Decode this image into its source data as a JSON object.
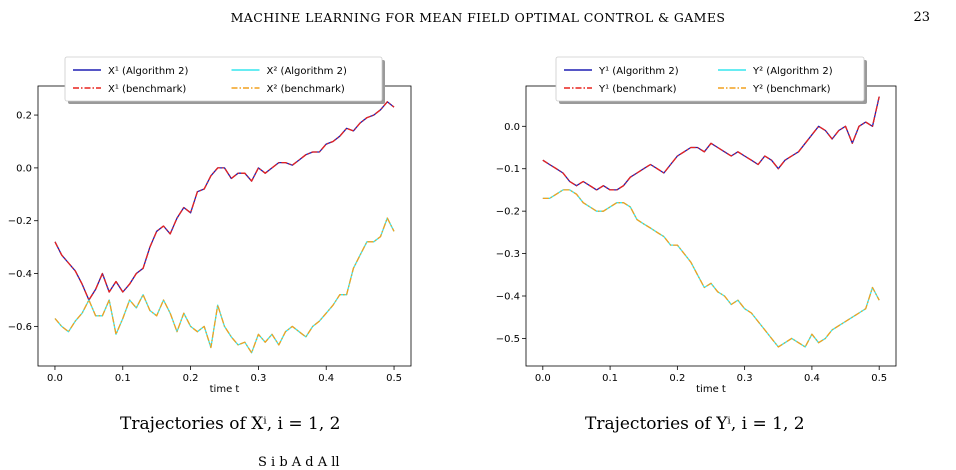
{
  "header": {
    "running_title": "MACHINE LEARNING FOR MEAN FIELD OPTIMAL CONTROL & GAMES",
    "page_number": "23"
  },
  "captions": {
    "left": "Trajectories of Xⁱ, i = 1, 2",
    "right": "Trajectories of Yⁱ, i = 1, 2"
  },
  "bottom_fragment": "S          i                                  b        A        d   A   ll",
  "chart_data": [
    {
      "type": "line",
      "xlabel": "time t",
      "ylabel": "",
      "xlim": [
        -0.025,
        0.525
      ],
      "ylim": [
        -0.75,
        0.31
      ],
      "xticks": [
        0.0,
        0.1,
        0.2,
        0.3,
        0.4,
        0.5
      ],
      "yticks": [
        -0.6,
        -0.4,
        -0.2,
        0.0,
        0.2
      ],
      "legend": [
        "X¹ (Algorithm 2)",
        "X² (Algorithm 2)",
        "X¹ (benchmark)",
        "X² (benchmark)"
      ],
      "legend_position": "top",
      "series": [
        {
          "name": "X¹ (Algorithm 2)",
          "color": "#1f1fb4",
          "style": "solid",
          "x": [
            0.0,
            0.01,
            0.02,
            0.03,
            0.04,
            0.05,
            0.06,
            0.07,
            0.08,
            0.09,
            0.1,
            0.11,
            0.12,
            0.13,
            0.14,
            0.15,
            0.16,
            0.17,
            0.18,
            0.19,
            0.2,
            0.21,
            0.22,
            0.23,
            0.24,
            0.25,
            0.26,
            0.27,
            0.28,
            0.29,
            0.3,
            0.31,
            0.32,
            0.33,
            0.34,
            0.35,
            0.36,
            0.37,
            0.38,
            0.39,
            0.4,
            0.41,
            0.42,
            0.43,
            0.44,
            0.45,
            0.46,
            0.47,
            0.48,
            0.49,
            0.5
          ],
          "y": [
            -0.28,
            -0.33,
            -0.36,
            -0.39,
            -0.44,
            -0.5,
            -0.46,
            -0.4,
            -0.47,
            -0.43,
            -0.47,
            -0.44,
            -0.4,
            -0.38,
            -0.3,
            -0.24,
            -0.22,
            -0.25,
            -0.19,
            -0.15,
            -0.17,
            -0.09,
            -0.08,
            -0.03,
            0.0,
            0.0,
            -0.04,
            -0.02,
            -0.02,
            -0.05,
            0.0,
            -0.02,
            0.0,
            0.02,
            0.02,
            0.01,
            0.03,
            0.05,
            0.06,
            0.06,
            0.09,
            0.1,
            0.12,
            0.15,
            0.14,
            0.17,
            0.19,
            0.2,
            0.22,
            0.25,
            0.23
          ]
        },
        {
          "name": "X¹ (benchmark)",
          "color": "#e8231e",
          "style": "dashdot",
          "x": [
            0.0,
            0.01,
            0.02,
            0.03,
            0.04,
            0.05,
            0.06,
            0.07,
            0.08,
            0.09,
            0.1,
            0.11,
            0.12,
            0.13,
            0.14,
            0.15,
            0.16,
            0.17,
            0.18,
            0.19,
            0.2,
            0.21,
            0.22,
            0.23,
            0.24,
            0.25,
            0.26,
            0.27,
            0.28,
            0.29,
            0.3,
            0.31,
            0.32,
            0.33,
            0.34,
            0.35,
            0.36,
            0.37,
            0.38,
            0.39,
            0.4,
            0.41,
            0.42,
            0.43,
            0.44,
            0.45,
            0.46,
            0.47,
            0.48,
            0.49,
            0.5
          ],
          "y": [
            -0.28,
            -0.33,
            -0.36,
            -0.39,
            -0.44,
            -0.5,
            -0.46,
            -0.4,
            -0.47,
            -0.43,
            -0.47,
            -0.44,
            -0.4,
            -0.38,
            -0.3,
            -0.24,
            -0.22,
            -0.25,
            -0.19,
            -0.15,
            -0.17,
            -0.09,
            -0.08,
            -0.03,
            0.0,
            0.0,
            -0.04,
            -0.02,
            -0.02,
            -0.05,
            0.0,
            -0.02,
            0.0,
            0.02,
            0.02,
            0.01,
            0.03,
            0.05,
            0.06,
            0.06,
            0.09,
            0.1,
            0.12,
            0.15,
            0.14,
            0.17,
            0.19,
            0.2,
            0.22,
            0.25,
            0.23
          ]
        },
        {
          "name": "X² (Algorithm 2)",
          "color": "#35e6ee",
          "style": "solid",
          "x": [
            0.0,
            0.01,
            0.02,
            0.03,
            0.04,
            0.05,
            0.06,
            0.07,
            0.08,
            0.09,
            0.1,
            0.11,
            0.12,
            0.13,
            0.14,
            0.15,
            0.16,
            0.17,
            0.18,
            0.19,
            0.2,
            0.21,
            0.22,
            0.23,
            0.24,
            0.25,
            0.26,
            0.27,
            0.28,
            0.29,
            0.3,
            0.31,
            0.32,
            0.33,
            0.34,
            0.35,
            0.36,
            0.37,
            0.38,
            0.39,
            0.4,
            0.41,
            0.42,
            0.43,
            0.44,
            0.45,
            0.46,
            0.47,
            0.48,
            0.49,
            0.5
          ],
          "y": [
            -0.57,
            -0.6,
            -0.62,
            -0.58,
            -0.55,
            -0.5,
            -0.56,
            -0.56,
            -0.5,
            -0.63,
            -0.57,
            -0.5,
            -0.53,
            -0.48,
            -0.54,
            -0.56,
            -0.5,
            -0.55,
            -0.62,
            -0.55,
            -0.6,
            -0.62,
            -0.6,
            -0.68,
            -0.52,
            -0.6,
            -0.64,
            -0.67,
            -0.66,
            -0.7,
            -0.63,
            -0.66,
            -0.63,
            -0.67,
            -0.62,
            -0.6,
            -0.62,
            -0.64,
            -0.6,
            -0.58,
            -0.55,
            -0.52,
            -0.48,
            -0.48,
            -0.38,
            -0.33,
            -0.28,
            -0.28,
            -0.26,
            -0.19,
            -0.24
          ]
        },
        {
          "name": "X² (benchmark)",
          "color": "#f2a11f",
          "style": "dashdot",
          "x": [
            0.0,
            0.01,
            0.02,
            0.03,
            0.04,
            0.05,
            0.06,
            0.07,
            0.08,
            0.09,
            0.1,
            0.11,
            0.12,
            0.13,
            0.14,
            0.15,
            0.16,
            0.17,
            0.18,
            0.19,
            0.2,
            0.21,
            0.22,
            0.23,
            0.24,
            0.25,
            0.26,
            0.27,
            0.28,
            0.29,
            0.3,
            0.31,
            0.32,
            0.33,
            0.34,
            0.35,
            0.36,
            0.37,
            0.38,
            0.39,
            0.4,
            0.41,
            0.42,
            0.43,
            0.44,
            0.45,
            0.46,
            0.47,
            0.48,
            0.49,
            0.5
          ],
          "y": [
            -0.57,
            -0.6,
            -0.62,
            -0.58,
            -0.55,
            -0.5,
            -0.56,
            -0.56,
            -0.5,
            -0.63,
            -0.57,
            -0.5,
            -0.53,
            -0.48,
            -0.54,
            -0.56,
            -0.5,
            -0.55,
            -0.62,
            -0.55,
            -0.6,
            -0.62,
            -0.6,
            -0.68,
            -0.52,
            -0.6,
            -0.64,
            -0.67,
            -0.66,
            -0.7,
            -0.63,
            -0.66,
            -0.63,
            -0.67,
            -0.62,
            -0.6,
            -0.62,
            -0.64,
            -0.6,
            -0.58,
            -0.55,
            -0.52,
            -0.48,
            -0.48,
            -0.38,
            -0.33,
            -0.28,
            -0.28,
            -0.26,
            -0.19,
            -0.24
          ]
        }
      ]
    },
    {
      "type": "line",
      "xlabel": "time t",
      "ylabel": "",
      "xlim": [
        -0.025,
        0.525
      ],
      "ylim": [
        -0.565,
        0.095
      ],
      "xticks": [
        0.0,
        0.1,
        0.2,
        0.3,
        0.4,
        0.5
      ],
      "yticks": [
        -0.5,
        -0.4,
        -0.3,
        -0.2,
        -0.1,
        0.0
      ],
      "legend": [
        "Y¹ (Algorithm 2)",
        "Y² (Algorithm 2)",
        "Y¹ (benchmark)",
        "Y² (benchmark)"
      ],
      "legend_position": "top",
      "series": [
        {
          "name": "Y¹ (Algorithm 2)",
          "color": "#1f1fb4",
          "style": "solid",
          "x": [
            0.0,
            0.01,
            0.02,
            0.03,
            0.04,
            0.05,
            0.06,
            0.07,
            0.08,
            0.09,
            0.1,
            0.11,
            0.12,
            0.13,
            0.14,
            0.15,
            0.16,
            0.17,
            0.18,
            0.19,
            0.2,
            0.21,
            0.22,
            0.23,
            0.24,
            0.25,
            0.26,
            0.27,
            0.28,
            0.29,
            0.3,
            0.31,
            0.32,
            0.33,
            0.34,
            0.35,
            0.36,
            0.37,
            0.38,
            0.39,
            0.4,
            0.41,
            0.42,
            0.43,
            0.44,
            0.45,
            0.46,
            0.47,
            0.48,
            0.49,
            0.5
          ],
          "y": [
            -0.08,
            -0.09,
            -0.1,
            -0.11,
            -0.13,
            -0.14,
            -0.13,
            -0.14,
            -0.15,
            -0.14,
            -0.15,
            -0.15,
            -0.14,
            -0.12,
            -0.11,
            -0.1,
            -0.09,
            -0.1,
            -0.11,
            -0.09,
            -0.07,
            -0.06,
            -0.05,
            -0.05,
            -0.06,
            -0.04,
            -0.05,
            -0.06,
            -0.07,
            -0.06,
            -0.07,
            -0.08,
            -0.09,
            -0.07,
            -0.08,
            -0.1,
            -0.08,
            -0.07,
            -0.06,
            -0.04,
            -0.02,
            0.0,
            -0.01,
            -0.03,
            -0.01,
            0.0,
            -0.04,
            0.0,
            0.01,
            0.0,
            0.07
          ]
        },
        {
          "name": "Y¹ (benchmark)",
          "color": "#e8231e",
          "style": "dashdot",
          "x": [
            0.0,
            0.01,
            0.02,
            0.03,
            0.04,
            0.05,
            0.06,
            0.07,
            0.08,
            0.09,
            0.1,
            0.11,
            0.12,
            0.13,
            0.14,
            0.15,
            0.16,
            0.17,
            0.18,
            0.19,
            0.2,
            0.21,
            0.22,
            0.23,
            0.24,
            0.25,
            0.26,
            0.27,
            0.28,
            0.29,
            0.3,
            0.31,
            0.32,
            0.33,
            0.34,
            0.35,
            0.36,
            0.37,
            0.38,
            0.39,
            0.4,
            0.41,
            0.42,
            0.43,
            0.44,
            0.45,
            0.46,
            0.47,
            0.48,
            0.49,
            0.5
          ],
          "y": [
            -0.08,
            -0.09,
            -0.1,
            -0.11,
            -0.13,
            -0.14,
            -0.13,
            -0.14,
            -0.15,
            -0.14,
            -0.15,
            -0.15,
            -0.14,
            -0.12,
            -0.11,
            -0.1,
            -0.09,
            -0.1,
            -0.11,
            -0.09,
            -0.07,
            -0.06,
            -0.05,
            -0.05,
            -0.06,
            -0.04,
            -0.05,
            -0.06,
            -0.07,
            -0.06,
            -0.07,
            -0.08,
            -0.09,
            -0.07,
            -0.08,
            -0.1,
            -0.08,
            -0.07,
            -0.06,
            -0.04,
            -0.02,
            0.0,
            -0.01,
            -0.03,
            -0.01,
            0.0,
            -0.04,
            0.0,
            0.01,
            0.0,
            0.07
          ]
        },
        {
          "name": "Y² (Algorithm 2)",
          "color": "#35e6ee",
          "style": "solid",
          "x": [
            0.0,
            0.01,
            0.02,
            0.03,
            0.04,
            0.05,
            0.06,
            0.07,
            0.08,
            0.09,
            0.1,
            0.11,
            0.12,
            0.13,
            0.14,
            0.15,
            0.16,
            0.17,
            0.18,
            0.19,
            0.2,
            0.21,
            0.22,
            0.23,
            0.24,
            0.25,
            0.26,
            0.27,
            0.28,
            0.29,
            0.3,
            0.31,
            0.32,
            0.33,
            0.34,
            0.35,
            0.36,
            0.37,
            0.38,
            0.39,
            0.4,
            0.41,
            0.42,
            0.43,
            0.44,
            0.45,
            0.46,
            0.47,
            0.48,
            0.49,
            0.5
          ],
          "y": [
            -0.17,
            -0.17,
            -0.16,
            -0.15,
            -0.15,
            -0.16,
            -0.18,
            -0.19,
            -0.2,
            -0.2,
            -0.19,
            -0.18,
            -0.18,
            -0.19,
            -0.22,
            -0.23,
            -0.24,
            -0.25,
            -0.26,
            -0.28,
            -0.28,
            -0.3,
            -0.32,
            -0.35,
            -0.38,
            -0.37,
            -0.39,
            -0.4,
            -0.42,
            -0.41,
            -0.43,
            -0.44,
            -0.46,
            -0.48,
            -0.5,
            -0.52,
            -0.51,
            -0.5,
            -0.51,
            -0.52,
            -0.49,
            -0.51,
            -0.5,
            -0.48,
            -0.47,
            -0.46,
            -0.45,
            -0.44,
            -0.43,
            -0.38,
            -0.41
          ]
        },
        {
          "name": "Y² (benchmark)",
          "color": "#f2a11f",
          "style": "dashdot",
          "x": [
            0.0,
            0.01,
            0.02,
            0.03,
            0.04,
            0.05,
            0.06,
            0.07,
            0.08,
            0.09,
            0.1,
            0.11,
            0.12,
            0.13,
            0.14,
            0.15,
            0.16,
            0.17,
            0.18,
            0.19,
            0.2,
            0.21,
            0.22,
            0.23,
            0.24,
            0.25,
            0.26,
            0.27,
            0.28,
            0.29,
            0.3,
            0.31,
            0.32,
            0.33,
            0.34,
            0.35,
            0.36,
            0.37,
            0.38,
            0.39,
            0.4,
            0.41,
            0.42,
            0.43,
            0.44,
            0.45,
            0.46,
            0.47,
            0.48,
            0.49,
            0.5
          ],
          "y": [
            -0.17,
            -0.17,
            -0.16,
            -0.15,
            -0.15,
            -0.16,
            -0.18,
            -0.19,
            -0.2,
            -0.2,
            -0.19,
            -0.18,
            -0.18,
            -0.19,
            -0.22,
            -0.23,
            -0.24,
            -0.25,
            -0.26,
            -0.28,
            -0.28,
            -0.3,
            -0.32,
            -0.35,
            -0.38,
            -0.37,
            -0.39,
            -0.4,
            -0.42,
            -0.41,
            -0.43,
            -0.44,
            -0.46,
            -0.48,
            -0.5,
            -0.52,
            -0.51,
            -0.5,
            -0.51,
            -0.52,
            -0.49,
            -0.51,
            -0.5,
            -0.48,
            -0.47,
            -0.46,
            -0.45,
            -0.44,
            -0.43,
            -0.38,
            -0.41
          ]
        }
      ]
    }
  ]
}
